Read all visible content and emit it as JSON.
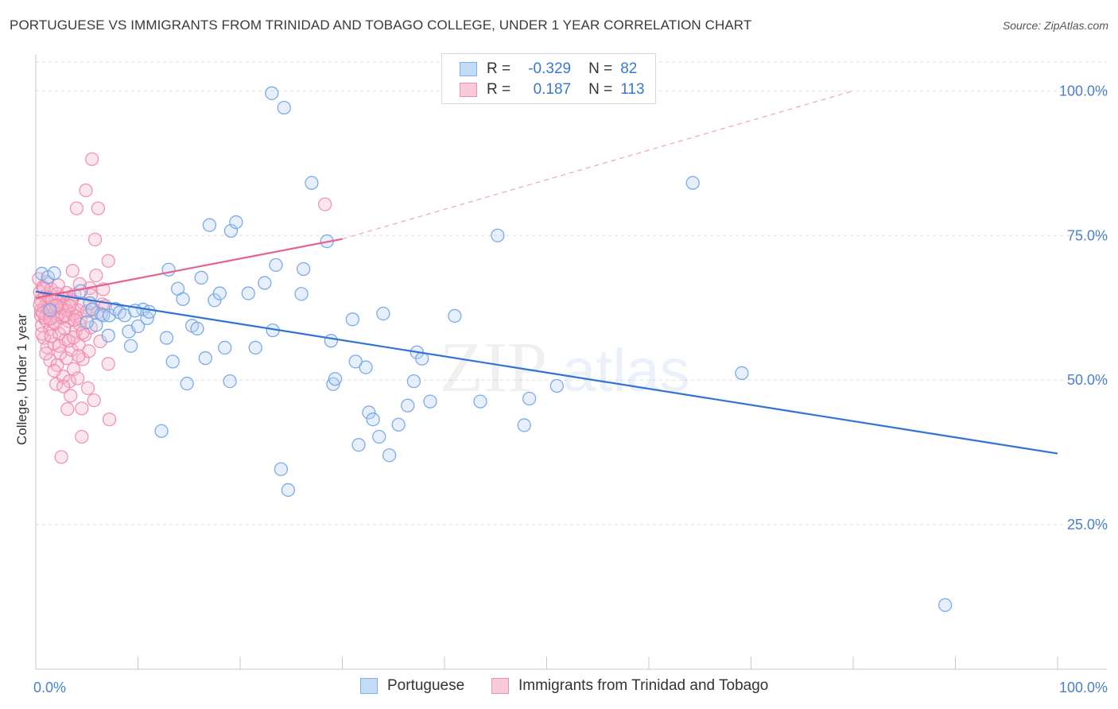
{
  "header": {
    "title": "PORTUGUESE VS IMMIGRANTS FROM TRINIDAD AND TOBAGO COLLEGE, UNDER 1 YEAR CORRELATION CHART",
    "source": "Source: ZipAtlas.com"
  },
  "watermark": {
    "zip": "ZIP",
    "atlas": "atlas"
  },
  "legend": {
    "rows": [
      {
        "r_label": "R =",
        "r_value": "-0.329",
        "n_label": "N =",
        "n_value": "82",
        "color": "#7fb0ea",
        "fill": "#c4dbf6"
      },
      {
        "r_label": "R =",
        "r_value": "0.187",
        "n_label": "N =",
        "n_value": "113",
        "color": "#ef8faf",
        "fill": "#f9cbd9"
      }
    ]
  },
  "bottom_legend": {
    "portuguese": "Portuguese",
    "trinidad": "Immigrants from Trinidad and Tobago"
  },
  "colors": {
    "blue_stroke": "#6fa3e6",
    "blue_line": "#2f73d6",
    "pink_stroke": "#ee8aad",
    "pink_line": "#e4628e",
    "axis_text": "#4a7fd0",
    "grid": "#dedede"
  },
  "chart_data": {
    "type": "scatter",
    "title": "PORTUGUESE VS IMMIGRANTS FROM TRINIDAD AND TOBAGO COLLEGE, UNDER 1 YEAR CORRELATION CHART",
    "xlabel": "",
    "ylabel": "College, Under 1 year",
    "xlim": [
      0,
      100
    ],
    "ylim": [
      0,
      105
    ],
    "x_tick_labels": [
      "0.0%",
      "100.0%"
    ],
    "y_tick_labels": [
      "25.0%",
      "50.0%",
      "75.0%",
      "100.0%"
    ],
    "y_ticks": [
      25,
      50,
      75,
      100
    ],
    "grid": true,
    "legend_position": "top-center",
    "series": [
      {
        "name": "Portuguese",
        "trend": {
          "x": [
            0,
            100
          ],
          "y": [
            65.3,
            37.3
          ]
        },
        "points": [
          [
            0.6,
            68.4
          ],
          [
            1.2,
            67.8
          ],
          [
            1.8,
            68.5
          ],
          [
            1.4,
            62.1
          ],
          [
            4.4,
            65.4
          ],
          [
            5.3,
            63.3
          ],
          [
            5.5,
            62.2
          ],
          [
            5.9,
            59.5
          ],
          [
            6.4,
            61.4
          ],
          [
            6.6,
            61.2
          ],
          [
            7.2,
            61.2
          ],
          [
            7.1,
            57.7
          ],
          [
            7.8,
            62.3
          ],
          [
            8.2,
            61.7
          ],
          [
            8.7,
            61.2
          ],
          [
            9.1,
            58.4
          ],
          [
            9.3,
            55.9
          ],
          [
            10.0,
            59.3
          ],
          [
            10.5,
            62.2
          ],
          [
            10.9,
            60.7
          ],
          [
            11.1,
            61.8
          ],
          [
            12.3,
            41.2
          ],
          [
            12.8,
            57.3
          ],
          [
            13.0,
            69.1
          ],
          [
            13.4,
            53.2
          ],
          [
            13.9,
            65.8
          ],
          [
            14.4,
            64.0
          ],
          [
            14.8,
            49.4
          ],
          [
            15.3,
            59.4
          ],
          [
            15.8,
            58.9
          ],
          [
            16.2,
            67.7
          ],
          [
            16.6,
            53.8
          ],
          [
            17.0,
            76.8
          ],
          [
            17.5,
            63.8
          ],
          [
            18.0,
            65.0
          ],
          [
            18.5,
            55.6
          ],
          [
            19.0,
            49.8
          ],
          [
            19.1,
            75.8
          ],
          [
            19.6,
            77.3
          ],
          [
            20.8,
            65.0
          ],
          [
            21.5,
            55.6
          ],
          [
            22.4,
            66.8
          ],
          [
            23.2,
            58.6
          ],
          [
            23.5,
            69.9
          ],
          [
            23.1,
            99.6
          ],
          [
            24.0,
            34.6
          ],
          [
            24.3,
            97.1
          ],
          [
            24.7,
            31.0
          ],
          [
            26.0,
            64.9
          ],
          [
            26.2,
            69.2
          ],
          [
            27.0,
            84.1
          ],
          [
            28.5,
            74.0
          ],
          [
            28.9,
            56.8
          ],
          [
            29.1,
            49.3
          ],
          [
            29.3,
            50.2
          ],
          [
            31.0,
            60.5
          ],
          [
            31.3,
            53.2
          ],
          [
            31.6,
            38.8
          ],
          [
            32.3,
            52.2
          ],
          [
            32.6,
            44.4
          ],
          [
            33.0,
            43.2
          ],
          [
            33.6,
            40.2
          ],
          [
            34.0,
            61.5
          ],
          [
            34.6,
            37.0
          ],
          [
            35.5,
            42.3
          ],
          [
            36.4,
            45.6
          ],
          [
            37.0,
            49.8
          ],
          [
            37.3,
            54.8
          ],
          [
            37.8,
            53.7
          ],
          [
            38.6,
            46.3
          ],
          [
            40.4,
            100.0
          ],
          [
            41.0,
            61.1
          ],
          [
            43.5,
            46.3
          ],
          [
            45.2,
            75.0
          ],
          [
            47.8,
            42.2
          ],
          [
            48.3,
            46.8
          ],
          [
            51.0,
            49.0
          ],
          [
            64.3,
            84.1
          ],
          [
            69.1,
            51.2
          ],
          [
            89.0,
            11.1
          ],
          [
            5.0,
            60.0
          ],
          [
            9.7,
            62.0
          ]
        ]
      },
      {
        "name": "Immigrants from Trinidad and Tobago",
        "trend": {
          "x": [
            0,
            30
          ],
          "y": [
            64.2,
            74.4
          ]
        },
        "trend_extension": {
          "x": [
            30,
            80
          ],
          "y": [
            74.4,
            100
          ]
        },
        "points": [
          [
            0.3,
            67.5
          ],
          [
            0.4,
            65.2
          ],
          [
            0.5,
            63.8
          ],
          [
            0.5,
            61.2
          ],
          [
            0.6,
            59.4
          ],
          [
            0.7,
            66.1
          ],
          [
            0.8,
            62.6
          ],
          [
            0.8,
            57.3
          ],
          [
            0.9,
            64.5
          ],
          [
            1.0,
            60.3
          ],
          [
            1.1,
            67.0
          ],
          [
            1.1,
            55.7
          ],
          [
            1.2,
            63.2
          ],
          [
            1.3,
            61.8
          ],
          [
            1.4,
            58.8
          ],
          [
            1.4,
            53.4
          ],
          [
            1.5,
            65.7
          ],
          [
            1.6,
            62.3
          ],
          [
            1.7,
            60.0
          ],
          [
            1.8,
            56.3
          ],
          [
            1.9,
            64.0
          ],
          [
            2.0,
            49.3
          ],
          [
            2.0,
            61.0
          ],
          [
            2.1,
            52.6
          ],
          [
            2.2,
            66.4
          ],
          [
            2.3,
            58.0
          ],
          [
            2.4,
            63.5
          ],
          [
            2.4,
            54.6
          ],
          [
            2.5,
            36.7
          ],
          [
            2.6,
            60.8
          ],
          [
            2.7,
            50.6
          ],
          [
            2.8,
            62.9
          ],
          [
            2.9,
            57.0
          ],
          [
            3.0,
            65.1
          ],
          [
            3.0,
            53.8
          ],
          [
            3.1,
            45.0
          ],
          [
            3.2,
            60.2
          ],
          [
            3.3,
            49.8
          ],
          [
            3.4,
            63.9
          ],
          [
            3.5,
            55.2
          ],
          [
            3.6,
            61.5
          ],
          [
            3.6,
            68.9
          ],
          [
            3.7,
            51.9
          ],
          [
            3.8,
            64.8
          ],
          [
            3.9,
            58.5
          ],
          [
            4.0,
            79.7
          ],
          [
            4.1,
            62.1
          ],
          [
            4.1,
            50.3
          ],
          [
            4.2,
            56.1
          ],
          [
            4.3,
            66.6
          ],
          [
            4.4,
            60.7
          ],
          [
            4.5,
            40.2
          ],
          [
            4.5,
            45.1
          ],
          [
            4.6,
            53.6
          ],
          [
            4.7,
            63.2
          ],
          [
            4.8,
            57.8
          ],
          [
            4.9,
            82.8
          ],
          [
            5.0,
            61.9
          ],
          [
            5.1,
            48.6
          ],
          [
            5.2,
            55.0
          ],
          [
            5.3,
            65.9
          ],
          [
            5.4,
            59.1
          ],
          [
            5.5,
            88.2
          ],
          [
            5.6,
            62.3
          ],
          [
            5.7,
            46.5
          ],
          [
            5.8,
            74.3
          ],
          [
            5.9,
            68.1
          ],
          [
            6.0,
            61.6
          ],
          [
            6.1,
            79.7
          ],
          [
            6.3,
            56.7
          ],
          [
            6.5,
            63.1
          ],
          [
            6.8,
            62.8
          ],
          [
            7.1,
            70.6
          ],
          [
            7.1,
            52.8
          ],
          [
            7.2,
            43.2
          ],
          [
            0.5,
            62.0
          ],
          [
            0.9,
            60.8
          ],
          [
            1.3,
            64.3
          ],
          [
            1.7,
            62.7
          ],
          [
            2.2,
            61.4
          ],
          [
            2.6,
            64.2
          ],
          [
            3.1,
            62.0
          ],
          [
            3.5,
            63.6
          ],
          [
            3.9,
            61.0
          ],
          [
            4.3,
            59.6
          ],
          [
            0.6,
            58.0
          ],
          [
            1.0,
            54.6
          ],
          [
            1.5,
            57.6
          ],
          [
            1.9,
            59.8
          ],
          [
            2.3,
            55.9
          ],
          [
            2.8,
            58.9
          ],
          [
            3.2,
            56.8
          ],
          [
            3.7,
            57.4
          ],
          [
            4.2,
            54.2
          ],
          [
            0.4,
            63.0
          ],
          [
            0.8,
            65.9
          ],
          [
            1.2,
            62.2
          ],
          [
            1.6,
            63.9
          ],
          [
            2.1,
            64.9
          ],
          [
            2.5,
            62.5
          ],
          [
            2.9,
            61.2
          ],
          [
            3.3,
            62.8
          ],
          [
            3.8,
            60.4
          ],
          [
            1.8,
            51.6
          ],
          [
            2.7,
            48.9
          ],
          [
            3.4,
            47.3
          ],
          [
            4.6,
            58.2
          ],
          [
            5.4,
            64.7
          ],
          [
            0.7,
            61.6
          ],
          [
            1.4,
            60.6
          ],
          [
            2.0,
            62.9
          ],
          [
            28.3,
            80.4
          ],
          [
            6.6,
            65.7
          ]
        ]
      }
    ]
  }
}
